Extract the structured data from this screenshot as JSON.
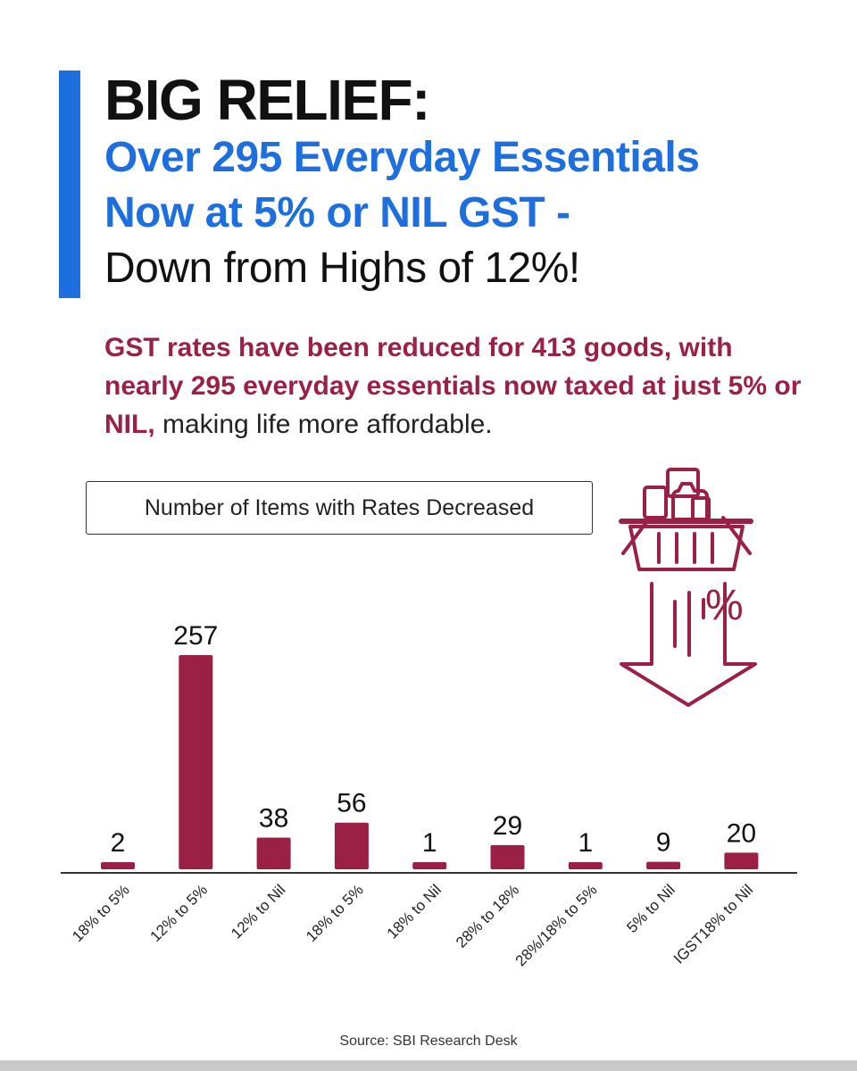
{
  "headline": {
    "line1": "BIG RELIEF:",
    "line2": "Over 295 Everyday Essentials",
    "line3": "Now at 5% or NIL GST -",
    "line4": "Down from Highs of 12%!"
  },
  "summary": {
    "emphasis": "GST rates have been reduced for 413 goods, with nearly 295 everyday essentials now taxed at just 5% or NIL,",
    "plain": " making life more affordable."
  },
  "illustration": {
    "icon": "shopping-basket-down-arrow-icon",
    "percent_glyph": "%"
  },
  "colors": {
    "accent_blue": "#1d6fe0",
    "bar_maroon": "#9b2046"
  },
  "chart_data": {
    "type": "bar",
    "title": "Number of Items with Rates Decreased",
    "categories": [
      "18% to 5%",
      "12% to 5%",
      "12% to Nil",
      "18% to 5%",
      "18% to Nil",
      "28% to 18%",
      "28%/18% to 5%",
      "5% to Nil",
      "IGST18% to Nil"
    ],
    "values": [
      2,
      257,
      38,
      56,
      1,
      29,
      1,
      9,
      20
    ],
    "xlabel": "",
    "ylabel": "",
    "ylim": [
      0,
      257
    ],
    "grid": false,
    "legend": "none"
  },
  "source": "Source: SBI Research Desk"
}
